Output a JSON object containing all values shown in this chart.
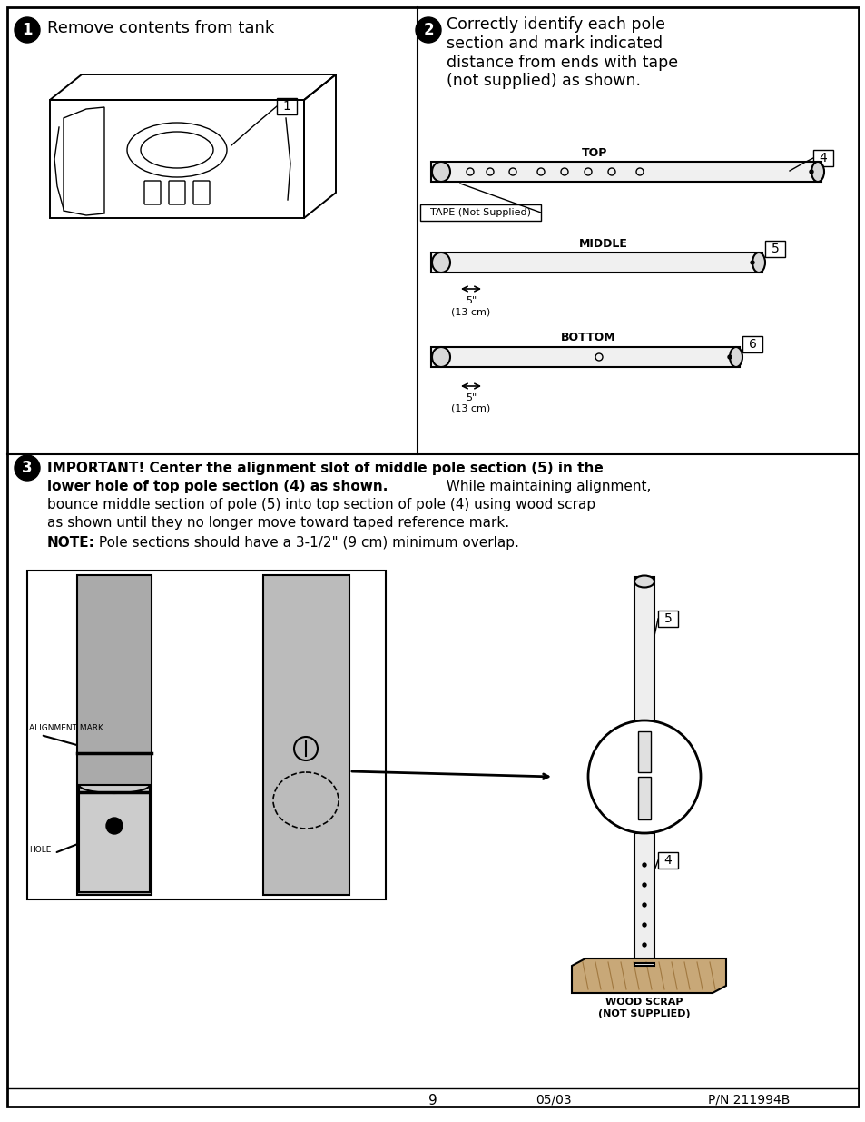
{
  "page_num": "9",
  "date": "05/03",
  "part_num": "P/N 211994B",
  "bg_color": "#ffffff",
  "border_color": "#000000",
  "step1_title": "Remove contents from tank",
  "step2_title": "Correctly identify each pole\nsection and mark indicated\ndistance from ends with tape\n(not supplied) as shown.",
  "step3_bold_line1": "IMPORTANT! Center the alignment slot of middle pole section (5) in the",
  "step3_bold_line2": "lower hole of top pole section (4) as shown.",
  "step3_normal_suffix": "  While maintaining alignment,",
  "step3_line3": "bounce middle section of pole (5) into top section of pole (4) using wood scrap",
  "step3_line4": "as shown until they no longer move toward taped reference mark.",
  "step3_note_bold": "NOTE:",
  "step3_note_normal": " Pole sections should have a 3-1/2\" (9 cm) minimum overlap.",
  "tape_label": "TAPE (Not Supplied)",
  "top_label": "TOP",
  "middle_label": "MIDDLE",
  "bottom_label": "BOTTOM",
  "dim_label1": "5\"",
  "dim_label2": "(13 cm)",
  "alignment_mark_label": "ALIGNMENT MARK",
  "hole_label": "HOLE",
  "wood_scrap_label1": "WOOD SCRAP",
  "wood_scrap_label2": "(NOT SUPPLIED)"
}
